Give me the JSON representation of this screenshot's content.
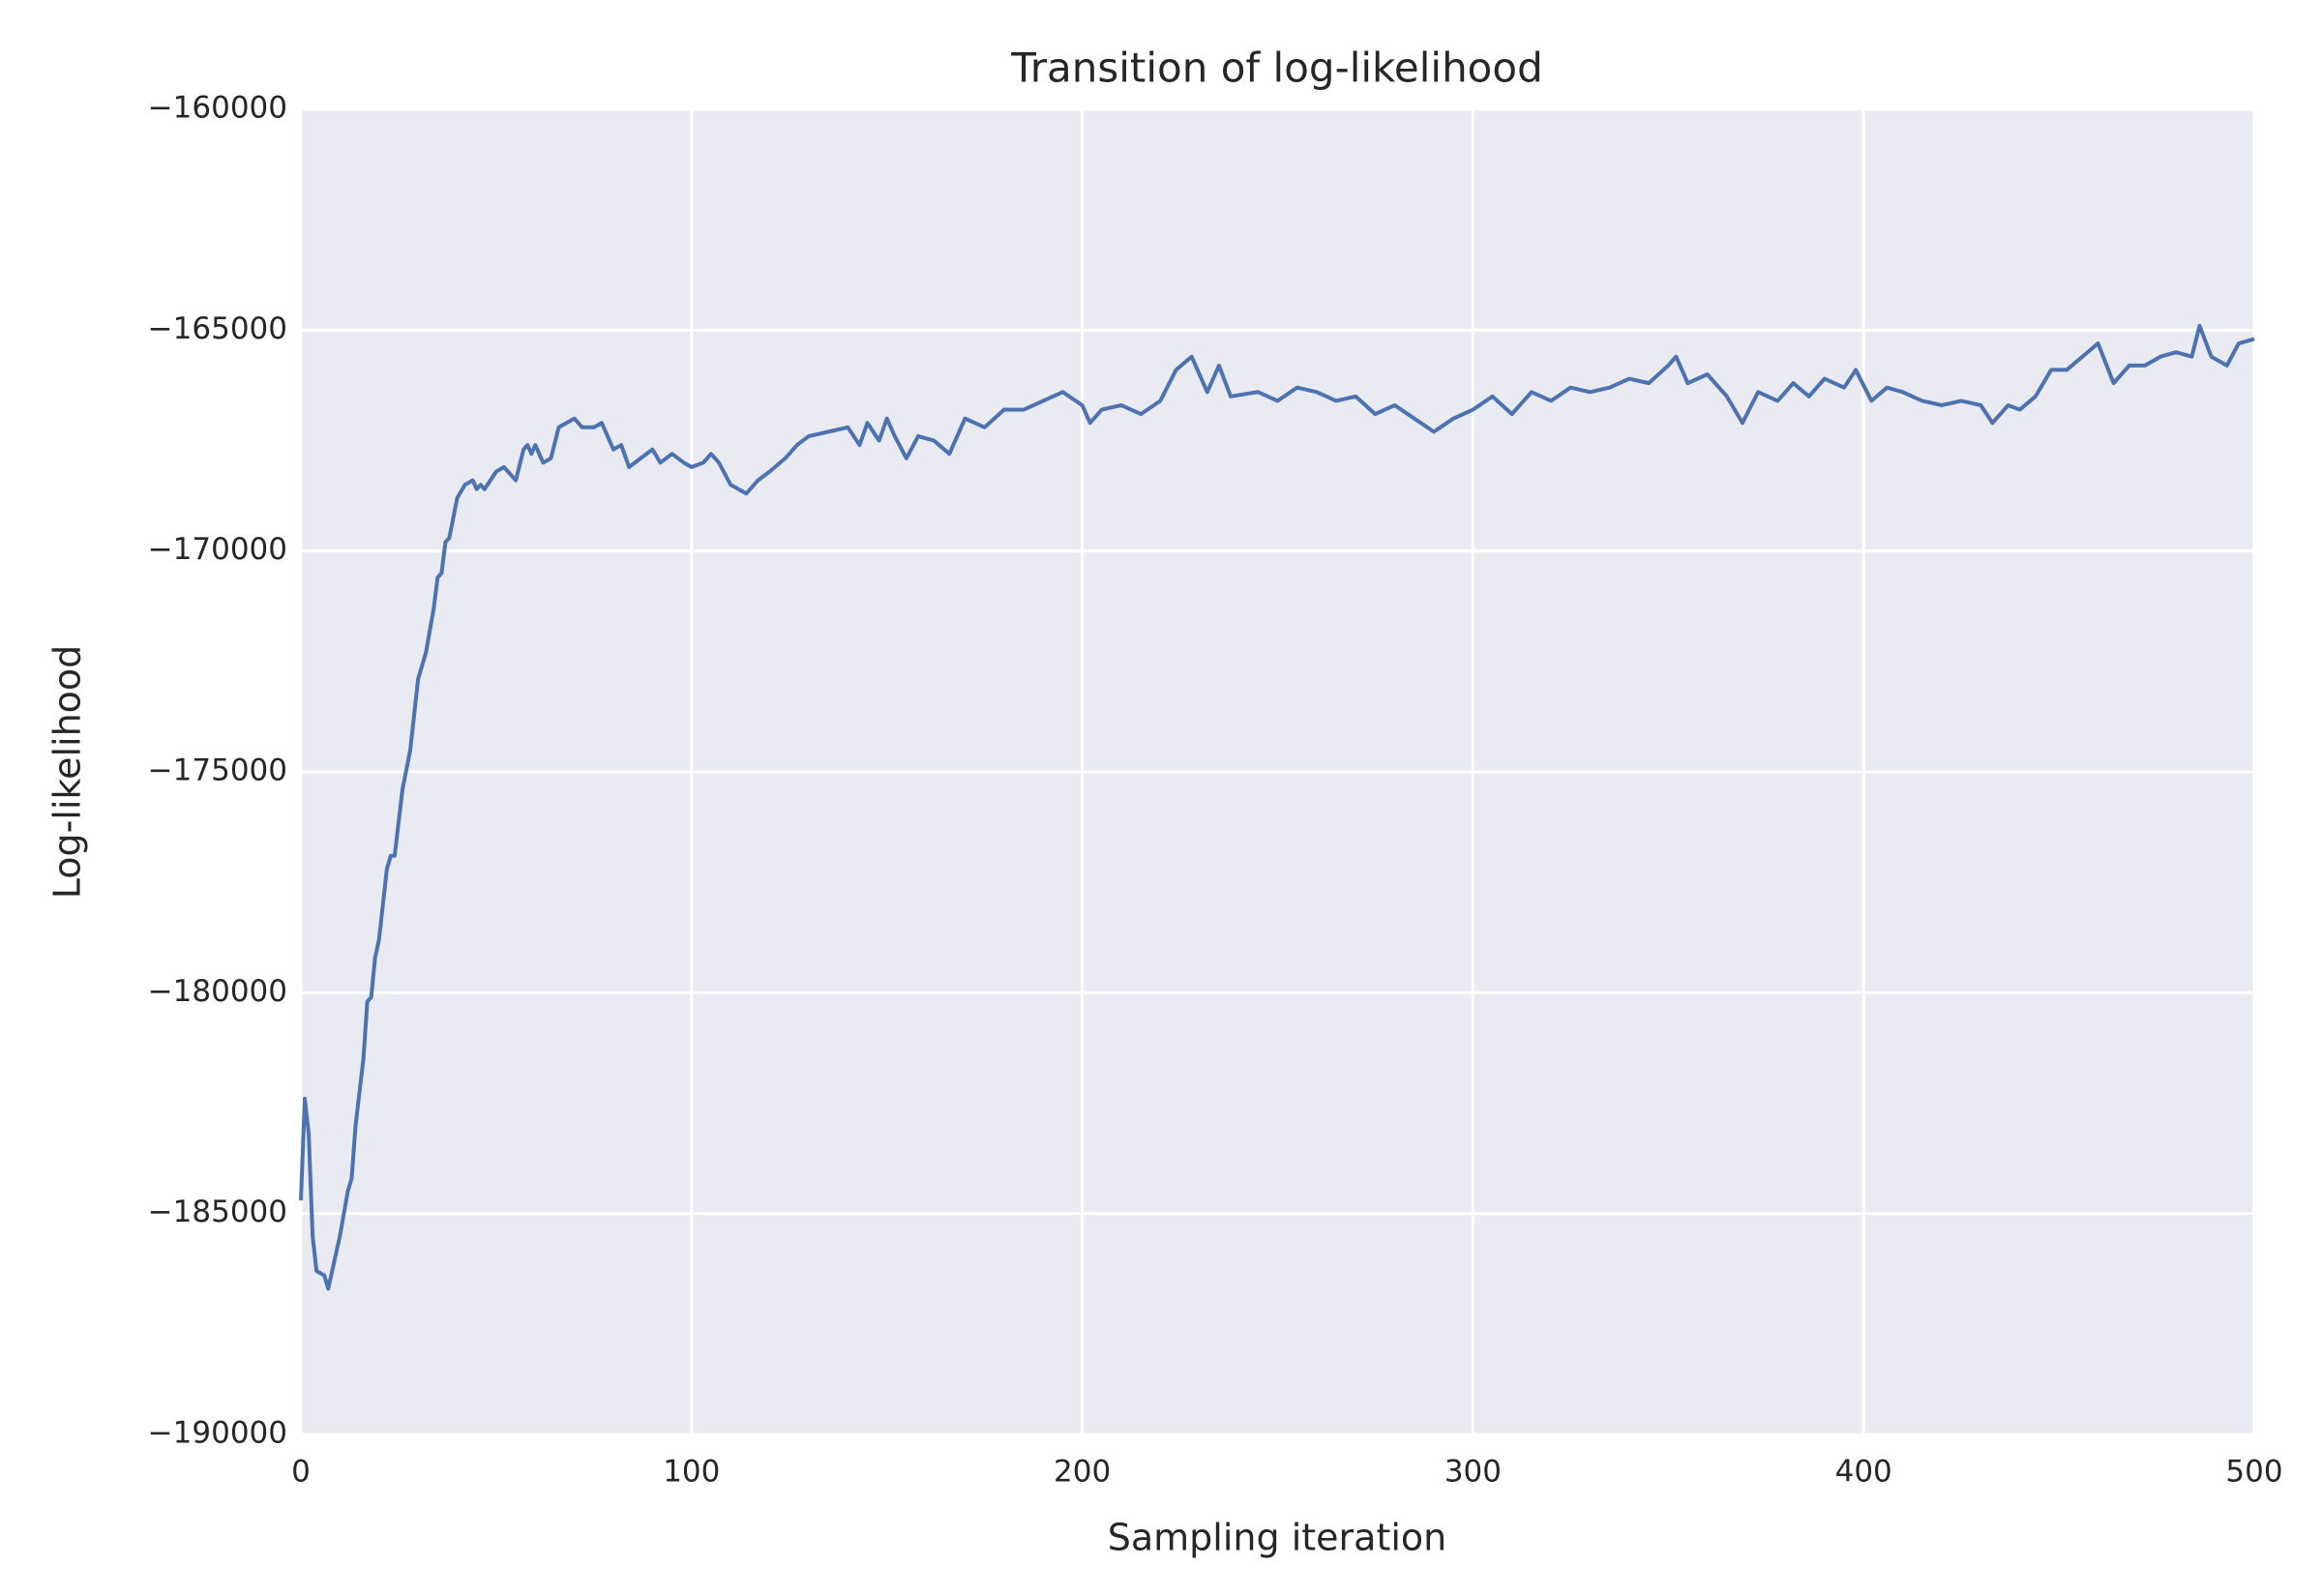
{
  "chart_data": {
    "type": "line",
    "title": "Transition of log-likelihood",
    "x_label": "Sampling iteration",
    "y_label": "Log-likelihood",
    "x": [
      0,
      1,
      2,
      3,
      4,
      6,
      7,
      10,
      12,
      13,
      14,
      16,
      17,
      18,
      19,
      20,
      22,
      23,
      24,
      26,
      28,
      30,
      32,
      34,
      35,
      36,
      37,
      38,
      40,
      42,
      44,
      45,
      46,
      47,
      50,
      52,
      55,
      57,
      58,
      59,
      60,
      62,
      64,
      66,
      68,
      70,
      72,
      75,
      77,
      80,
      82,
      84,
      87,
      90,
      92,
      95,
      98,
      100,
      103,
      105,
      107,
      110,
      112,
      114,
      117,
      120,
      124,
      127,
      130,
      135,
      140,
      143,
      145,
      148,
      150,
      152,
      155,
      158,
      162,
      166,
      170,
      175,
      180,
      185,
      190,
      195,
      200,
      202,
      205,
      210,
      215,
      220,
      224,
      228,
      232,
      235,
      238,
      245,
      250,
      255,
      260,
      265,
      270,
      275,
      280,
      285,
      290,
      295,
      300,
      305,
      310,
      315,
      320,
      325,
      330,
      335,
      340,
      345,
      350,
      352,
      355,
      360,
      365,
      369,
      373,
      378,
      382,
      386,
      390,
      395,
      398,
      402,
      406,
      410,
      415,
      420,
      425,
      430,
      433,
      437,
      440,
      444,
      448,
      452,
      456,
      460,
      464,
      468,
      472,
      476,
      480,
      484,
      486,
      489,
      493,
      496,
      500
    ],
    "series": [
      {
        "name": "Log-likelihood",
        "color": "#4c72b0",
        "values": [
          -184700,
          -182400,
          -183200,
          -185500,
          -186300,
          -186400,
          -186700,
          -185500,
          -184500,
          -184200,
          -183000,
          -181500,
          -180200,
          -180100,
          -179200,
          -178800,
          -177200,
          -176900,
          -176900,
          -175400,
          -174500,
          -172900,
          -172300,
          -171300,
          -170600,
          -170500,
          -169800,
          -169700,
          -168800,
          -168500,
          -168400,
          -168600,
          -168500,
          -168600,
          -168200,
          -168100,
          -168400,
          -167700,
          -167600,
          -167800,
          -167600,
          -168000,
          -167900,
          -167200,
          -167100,
          -167000,
          -167200,
          -167200,
          -167100,
          -167700,
          -167600,
          -168100,
          -167900,
          -167700,
          -168000,
          -167800,
          -168000,
          -168100,
          -168000,
          -167800,
          -168000,
          -168500,
          -168600,
          -168700,
          -168400,
          -168200,
          -167900,
          -167600,
          -167400,
          -167300,
          -167200,
          -167600,
          -167100,
          -167500,
          -167000,
          -167400,
          -167900,
          -167400,
          -167500,
          -167800,
          -167000,
          -167200,
          -166800,
          -166800,
          -166600,
          -166400,
          -166700,
          -167100,
          -166800,
          -166700,
          -166900,
          -166600,
          -165900,
          -165600,
          -166400,
          -165800,
          -166500,
          -166400,
          -166600,
          -166300,
          -166400,
          -166600,
          -166500,
          -166900,
          -166700,
          -167000,
          -167300,
          -167000,
          -166800,
          -166500,
          -166900,
          -166400,
          -166600,
          -166300,
          -166400,
          -166300,
          -166100,
          -166200,
          -165800,
          -165600,
          -166200,
          -166000,
          -166500,
          -167100,
          -166400,
          -166600,
          -166200,
          -166500,
          -166100,
          -166300,
          -165900,
          -166600,
          -166300,
          -166400,
          -166600,
          -166700,
          -166600,
          -166700,
          -167100,
          -166700,
          -166800,
          -166500,
          -165900,
          -165900,
          -165600,
          -165300,
          -166200,
          -165800,
          -165800,
          -165600,
          -165500,
          -165600,
          -164900,
          -165600,
          -165800,
          -165300,
          -165200
        ]
      }
    ],
    "xlim": [
      0,
      500
    ],
    "xticks": [
      0,
      100,
      200,
      300,
      400,
      500
    ],
    "ylim": [
      -190000,
      -160000
    ],
    "yticks": [
      {
        "value": -160000,
        "label": "−160000"
      },
      {
        "value": -165000,
        "label": "−165000"
      },
      {
        "value": -170000,
        "label": "−170000"
      },
      {
        "value": -175000,
        "label": "−175000"
      },
      {
        "value": -180000,
        "label": "−180000"
      },
      {
        "value": -185000,
        "label": "−185000"
      },
      {
        "value": -190000,
        "label": "−190000"
      }
    ],
    "grid": true
  }
}
